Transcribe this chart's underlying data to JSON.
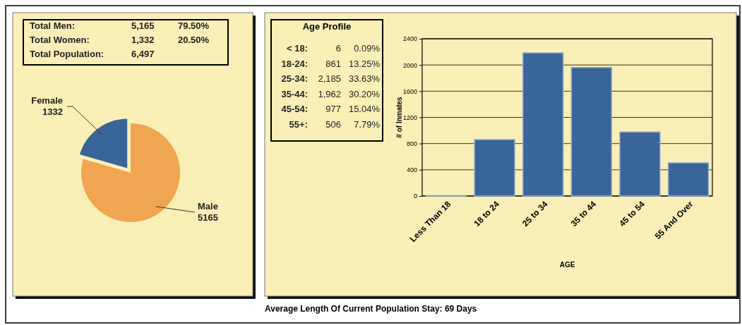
{
  "chart_data": [
    {
      "type": "pie",
      "categories": [
        "Female",
        "Male"
      ],
      "values": [
        1332,
        5165
      ],
      "colors": [
        "#3a6598",
        "#f0a550"
      ],
      "data_labels": true,
      "annotations": [
        "Total Men:",
        "5,165",
        "79.50%",
        "Total Women:",
        "1,332",
        "20.50%",
        "Total Population:",
        "6,497"
      ]
    },
    {
      "type": "bar",
      "categories": [
        "Less Than 18",
        "18 to 24",
        "25 to 34",
        "35 to 44",
        "45 to 54",
        "55 And Over"
      ],
      "values": [
        6,
        861,
        2185,
        1962,
        977,
        506
      ],
      "color": "#3a6598",
      "ylim": [
        0,
        2400
      ],
      "yticks": [
        0,
        400,
        800,
        1200,
        1600,
        2000,
        2400
      ],
      "grid": "y",
      "xlabel": "AGE",
      "ylabel": "# of Inmates",
      "annotations": [
        "Age Profile",
        "< 18:",
        "6",
        "0.09%",
        "18-24:",
        "861",
        "13.25%",
        "25-34:",
        "2,185",
        "33.63%",
        "35-44:",
        "1,962",
        "30.20%",
        "45-54:",
        "977",
        "15.04%",
        "55+:",
        "506",
        "7.79%",
        "Average Length Of Current Population Stay: 69  Days"
      ]
    }
  ]
}
